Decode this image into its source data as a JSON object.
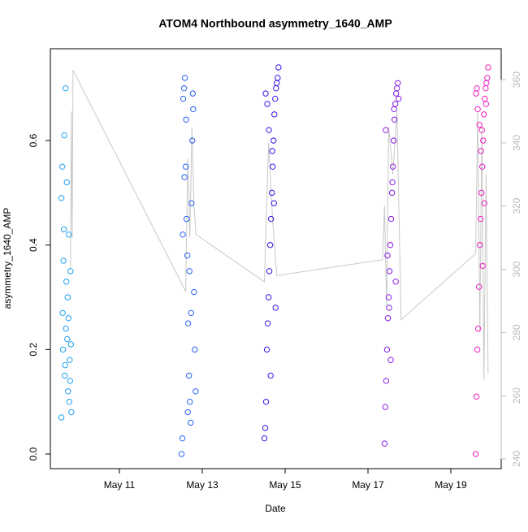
{
  "chart_data": {
    "type": "scatter",
    "title": "ATOM4 Northbound asymmetry_1640_AMP",
    "x_label": "Date",
    "y_label": "asymmetry_1640_AMP",
    "xlim": [
      9.333,
      20.216
    ],
    "xticks": [
      {
        "value": 11,
        "label": "May 11"
      },
      {
        "value": 13,
        "label": "May 13"
      },
      {
        "value": 15,
        "label": "May 15"
      },
      {
        "value": 17,
        "label": "May 17"
      },
      {
        "value": 19,
        "label": "May 19"
      }
    ],
    "ylim": [
      -0.028,
      0.7757
    ],
    "yticks": [
      {
        "value": 0,
        "label": "0.0"
      },
      0.2,
      0.4,
      0.6
    ],
    "y2lim": [
      236.9,
      369.8
    ],
    "y2ticks": [
      240,
      260,
      280,
      300,
      320,
      340,
      360
    ],
    "y2_color": "#bbbbbb",
    "series": [
      {
        "color": "#1fa0f0",
        "x": [
          9.6,
          9.62,
          9.64,
          9.66,
          9.68,
          9.7,
          9.72,
          9.74,
          9.76,
          9.78,
          9.8,
          9.82,
          9.84,
          9.6,
          9.63,
          9.67,
          9.71,
          9.75,
          9.79,
          9.83,
          9.65,
          9.69,
          9.73,
          9.77,
          9.81
        ],
        "values": [
          0.07,
          0.55,
          0.2,
          0.43,
          0.15,
          0.7,
          0.33,
          0.22,
          0.12,
          0.42,
          0.18,
          0.35,
          0.08,
          0.49,
          0.27,
          0.61,
          0.24,
          0.3,
          0.1,
          0.21,
          0.37,
          0.17,
          0.52,
          0.26,
          0.14
        ]
      },
      {
        "color": "#2660f2",
        "x": [
          12.5,
          12.52,
          12.54,
          12.56,
          12.58,
          12.6,
          12.62,
          12.64,
          12.66,
          12.68,
          12.7,
          12.72,
          12.74,
          12.76,
          12.78,
          12.8,
          12.82,
          12.84,
          12.53,
          12.57,
          12.61,
          12.65,
          12.69,
          12.73,
          12.77
        ],
        "values": [
          0.0,
          0.03,
          0.68,
          0.7,
          0.72,
          0.55,
          0.45,
          0.38,
          0.25,
          0.15,
          0.1,
          0.06,
          0.48,
          0.6,
          0.66,
          0.31,
          0.2,
          0.12,
          0.42,
          0.53,
          0.64,
          0.08,
          0.35,
          0.27,
          0.69
        ]
      },
      {
        "color": "#3318e8",
        "x": [
          14.5,
          14.52,
          14.54,
          14.56,
          14.58,
          14.6,
          14.62,
          14.64,
          14.66,
          14.68,
          14.7,
          14.72,
          14.74,
          14.76,
          14.78,
          14.8,
          14.82,
          14.84,
          14.53,
          14.57,
          14.61,
          14.65,
          14.69,
          14.73,
          14.77
        ],
        "values": [
          0.03,
          0.05,
          0.1,
          0.2,
          0.25,
          0.3,
          0.35,
          0.4,
          0.45,
          0.5,
          0.55,
          0.6,
          0.65,
          0.68,
          0.7,
          0.71,
          0.72,
          0.74,
          0.69,
          0.67,
          0.62,
          0.15,
          0.58,
          0.48,
          0.28
        ]
      },
      {
        "color": "#8a1ee0",
        "x": [
          17.4,
          17.42,
          17.44,
          17.46,
          17.48,
          17.5,
          17.52,
          17.54,
          17.56,
          17.58,
          17.6,
          17.62,
          17.64,
          17.66,
          17.68,
          17.7,
          17.72,
          17.74,
          17.43,
          17.47,
          17.51,
          17.55,
          17.59,
          17.63,
          17.67
        ],
        "values": [
          0.02,
          0.09,
          0.14,
          0.2,
          0.26,
          0.3,
          0.35,
          0.4,
          0.45,
          0.5,
          0.55,
          0.6,
          0.64,
          0.67,
          0.69,
          0.7,
          0.71,
          0.68,
          0.62,
          0.38,
          0.28,
          0.18,
          0.52,
          0.66,
          0.33
        ]
      },
      {
        "color": "#f020c0",
        "x": [
          19.6,
          19.62,
          19.64,
          19.66,
          19.68,
          19.7,
          19.72,
          19.74,
          19.76,
          19.78,
          19.8,
          19.82,
          19.84,
          19.86,
          19.88,
          19.9,
          19.61,
          19.65,
          19.69,
          19.73,
          19.77,
          19.81,
          19.85,
          19.63,
          19.75
        ],
        "values": [
          0.0,
          0.11,
          0.2,
          0.24,
          0.32,
          0.4,
          0.45,
          0.5,
          0.55,
          0.6,
          0.65,
          0.68,
          0.7,
          0.71,
          0.72,
          0.74,
          0.69,
          0.66,
          0.63,
          0.58,
          0.36,
          0.48,
          0.67,
          0.7,
          0.62
        ]
      },
      {
        "type": "line",
        "axis": "y2",
        "color": "#c8c8c8",
        "x": [
          9.82,
          9.84,
          9.86,
          9.88,
          12.6,
          12.65,
          12.7,
          12.75,
          12.8,
          12.85,
          14.5,
          14.6,
          14.7,
          14.8,
          17.35,
          17.4,
          17.45,
          17.5,
          17.6,
          17.7,
          17.8,
          19.6,
          19.65,
          19.7,
          19.75,
          19.8,
          19.85,
          19.9
        ],
        "values": [
          300,
          350,
          310,
          363,
          293,
          335,
          310,
          345,
          320,
          311,
          296,
          340,
          315,
          298,
          303,
          320,
          288,
          345,
          330,
          350,
          284,
          305,
          350,
          280,
          345,
          265,
          330,
          267
        ]
      }
    ]
  }
}
